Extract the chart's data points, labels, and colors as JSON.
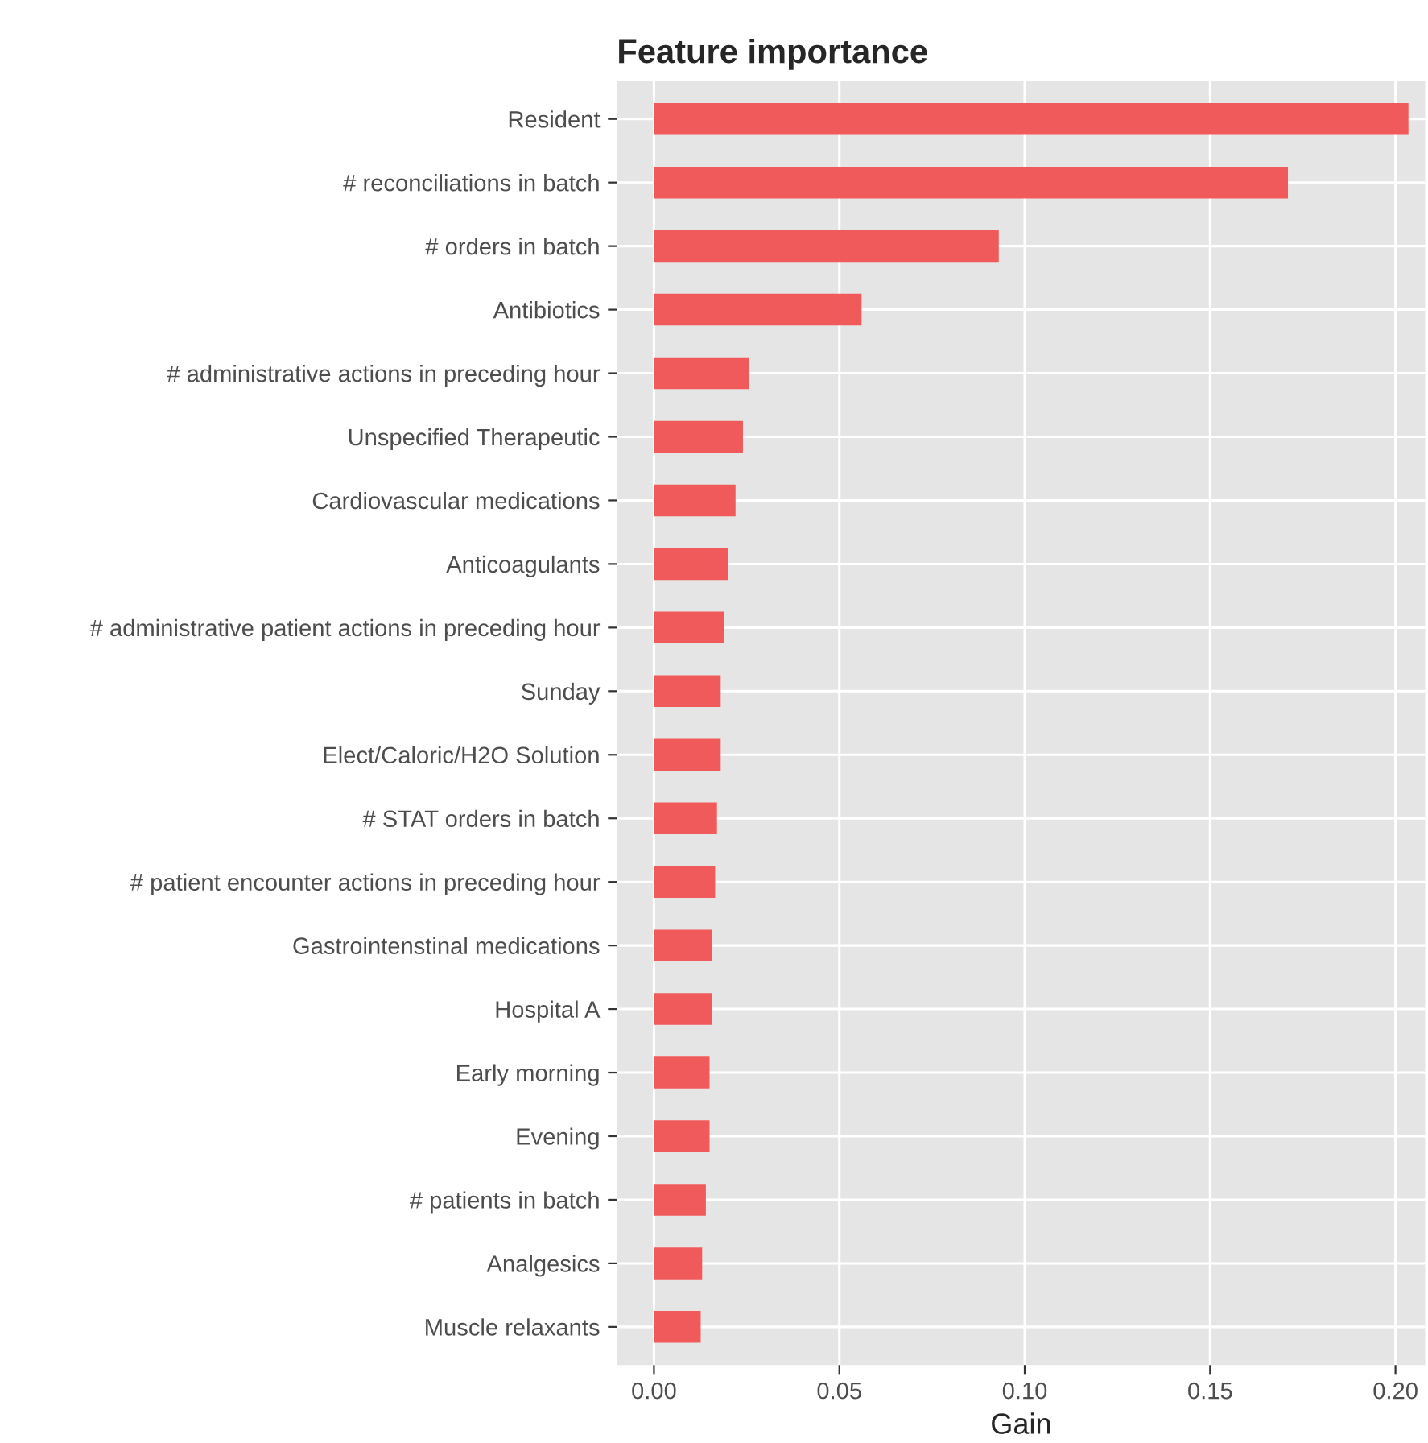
{
  "chart_data": {
    "type": "bar",
    "orientation": "horizontal",
    "title": "Feature importance",
    "xlabel": "Gain",
    "categories": [
      "Resident",
      "# reconciliations in batch",
      "# orders in batch",
      "Antibiotics",
      "# administrative actions in preceding hour",
      "Unspecified Therapeutic",
      "Cardiovascular medications",
      "Anticoagulants",
      "# administrative patient actions in preceding hour",
      "Sunday",
      "Elect/Caloric/H2O Solution",
      "# STAT orders in batch",
      "# patient encounter actions in preceding hour",
      "Gastrointenstinal medications",
      "Hospital A",
      "Early morning",
      "Evening",
      "# patients in batch",
      "Analgesics",
      "Muscle relaxants"
    ],
    "values": [
      0.2035,
      0.171,
      0.093,
      0.056,
      0.0256,
      0.024,
      0.022,
      0.02,
      0.019,
      0.018,
      0.018,
      0.017,
      0.0165,
      0.0156,
      0.0156,
      0.015,
      0.015,
      0.014,
      0.013,
      0.0126
    ],
    "color": "#f15a5a",
    "xlim": [
      -0.01,
      0.208
    ],
    "xticks": [
      {
        "value": 0,
        "label": "0.00"
      },
      {
        "value": 0.05,
        "label": "0.05"
      },
      {
        "value": 0.1,
        "label": "0.10"
      },
      {
        "value": 0.15,
        "label": "0.15"
      },
      {
        "value": 0.2,
        "label": "0.20"
      }
    ],
    "grid": true
  }
}
